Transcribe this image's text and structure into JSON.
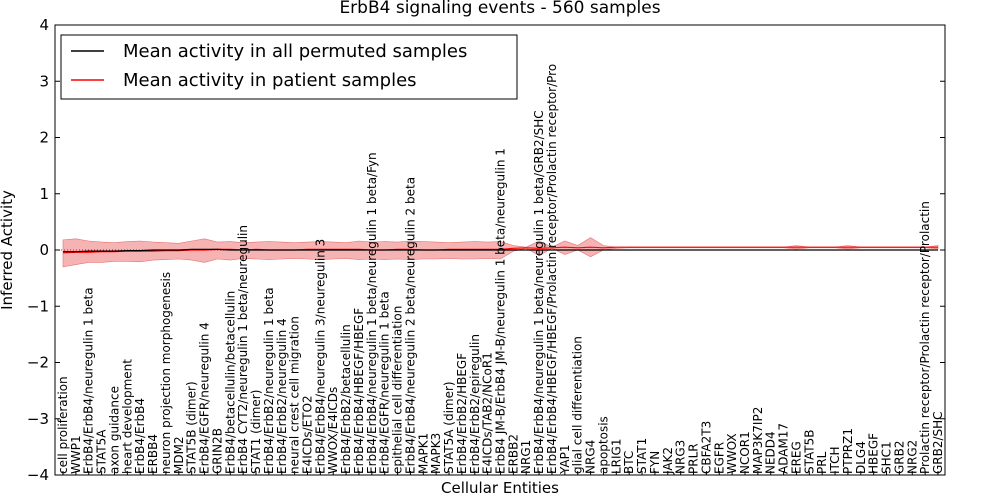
{
  "chart_data": {
    "type": "line",
    "title": "ErbB4 signaling events - 560 samples",
    "xlabel": "Cellular Entities",
    "ylabel": "Inferred Activity",
    "ylim": [
      -4,
      4
    ],
    "yticks": [
      "4",
      "3",
      "2",
      "1",
      "0",
      "−1",
      "−2",
      "−3",
      "−4"
    ],
    "legend": {
      "position": "top-left",
      "entries": [
        {
          "name": "Mean activity in all permuted samples",
          "color": "#000000"
        },
        {
          "name": "Mean activity in patient samples",
          "color": "#ff0000"
        }
      ]
    },
    "categories": [
      "cell proliferation",
      "WWP1",
      "ErbB4/ErbB4/neuregulin 1 beta",
      "STAT5A",
      "axon guidance",
      "heart development",
      "ErbB4/ErbB4",
      "ERBB4",
      "neuron projection morphogenesis",
      "MDM2",
      "STAT5B (dimer)",
      "ErbB4/EGFR/neuregulin 4",
      "GRIN2B",
      "ErbB4/betacellulin/betacellulin",
      "ErbB4 CYT2/neuregulin 1 beta/neuregulin",
      "STAT1 (dimer)",
      "ErbB4/ErbB2/neuregulin 1 beta",
      "ErbB4/ErbB2/neuregulin 4",
      "neural crest cell migration",
      "E4ICDs/ETO2",
      "ErbB4/ErbB4/neuregulin 3/neuregulin 3",
      "WWOX/E4ICDs",
      "ErbB4/ErbB2/betacellulin",
      "ErbB4/ErbB4/HBEGF/HBEGF",
      "ErbB4/ErbB4/neuregulin 1 beta/neuregulin 1 beta/Fyn",
      "ErbB4/EGFR/neuregulin 1 beta",
      "epithelial cell differentiation",
      "ErbB4/ErbB4/neuregulin 2 beta/neuregulin 2 beta",
      "MAPK1",
      "MAPK3",
      "STAT5A (dimer)",
      "ErbB4/ErbB2/HBEGF",
      "ErbB4/ErbB2/epiregulin",
      "E4ICDs/TAB2/NCoR1",
      "ErbB4 JM-B/ErbB4 JM-B/neuregulin 1 beta/neuregulin 1",
      "ERBB2",
      "NRG1",
      "ErbB4/ErbB4/neuregulin 1 beta/neuregulin 1 beta/GRB2/SHC",
      "ErbB4/ErbB4/HBEGF/HBEGF/Prolactin receptor/Prolactin receptor/Pro",
      "YAP1",
      "glial cell differentiation",
      "NRG4",
      "apoptosis",
      "LRIG1",
      "BTC",
      "STAT1",
      "FYN",
      "JAK2",
      "NRG3",
      "PRLR",
      "CBFA2T3",
      "EGFR",
      "WWOX",
      "NCOR1",
      "MAP3K7IP2",
      "NEDD4",
      "ADAM17",
      "EREG",
      "STAT5B",
      "PRL",
      "ITCH",
      "PTPRZ1",
      "DLG4",
      "HBEGF",
      "SHC1",
      "GRB2",
      "NRG2",
      "Prolactin receptor/Prolactin receptor/Prolactin",
      "GRB2/SHC"
    ],
    "series": [
      {
        "name": "Mean activity in patient samples",
        "values": [
          -0.05,
          -0.04,
          -0.04,
          -0.03,
          -0.03,
          -0.02,
          -0.02,
          -0.02,
          -0.01,
          -0.01,
          0.0,
          0.0,
          0.01,
          0.01,
          0.0,
          0.01,
          0.0,
          0.0,
          0.0,
          0.01,
          0.01,
          0.01,
          0.01,
          0.01,
          0.0,
          0.0,
          0.01,
          0.01,
          0.0,
          0.0,
          0.01,
          0.01,
          0.01,
          0.01,
          0.01,
          0.03,
          0.04,
          0.03,
          0.04,
          0.05,
          0.04,
          0.05,
          0.04,
          0.05,
          0.05,
          0.05,
          0.05,
          0.05,
          0.05,
          0.05,
          0.05,
          0.05,
          0.05,
          0.05,
          0.05,
          0.05,
          0.05,
          0.05,
          0.05,
          0.05,
          0.05,
          0.05,
          0.05,
          0.05,
          0.05,
          0.05,
          0.05,
          0.05,
          0.05
        ]
      },
      {
        "name": "Mean activity in all permuted samples",
        "values": [
          -0.03,
          -0.03,
          -0.02,
          -0.02,
          -0.02,
          -0.01,
          -0.01,
          0.0,
          0.0,
          0.0,
          0.01,
          0.01,
          0.01,
          0.0,
          0.0,
          0.0,
          0.0,
          0.0,
          0.0,
          0.0,
          0.0,
          0.0,
          0.0,
          0.0,
          0.0,
          0.0,
          0.0,
          0.0,
          0.0,
          0.0,
          0.0,
          0.0,
          0.0,
          0.0,
          0.0,
          0.0,
          0.0,
          0.0,
          0.0,
          0.0,
          0.0,
          0.0,
          0.0,
          0.0,
          0.0,
          0.0,
          0.0,
          0.0,
          0.0,
          0.0,
          0.0,
          0.0,
          0.0,
          0.0,
          0.0,
          0.0,
          0.0,
          0.0,
          0.0,
          0.0,
          0.0,
          0.0,
          0.0,
          0.0,
          0.0,
          0.0,
          0.0,
          0.0,
          0.0
        ]
      },
      {
        "name": "Activity band upper",
        "values": [
          0.18,
          0.2,
          0.16,
          0.14,
          0.13,
          0.15,
          0.16,
          0.14,
          0.13,
          0.12,
          0.16,
          0.2,
          0.14,
          0.15,
          0.13,
          0.14,
          0.15,
          0.14,
          0.13,
          0.14,
          0.15,
          0.14,
          0.13,
          0.16,
          0.14,
          0.15,
          0.14,
          0.16,
          0.15,
          0.14,
          0.13,
          0.14,
          0.15,
          0.14,
          0.15,
          0.08,
          0.05,
          0.16,
          0.05,
          0.16,
          0.08,
          0.22,
          0.08,
          0.05,
          0.05,
          0.05,
          0.05,
          0.05,
          0.05,
          0.05,
          0.05,
          0.05,
          0.05,
          0.05,
          0.05,
          0.05,
          0.05,
          0.08,
          0.05,
          0.05,
          0.05,
          0.08,
          0.05,
          0.05,
          0.05,
          0.05,
          0.05,
          0.05,
          0.08
        ]
      },
      {
        "name": "Activity band lower",
        "values": [
          -0.3,
          -0.26,
          -0.22,
          -0.22,
          -0.2,
          -0.2,
          -0.21,
          -0.18,
          -0.17,
          -0.16,
          -0.18,
          -0.22,
          -0.16,
          -0.18,
          -0.15,
          -0.16,
          -0.17,
          -0.16,
          -0.15,
          -0.16,
          -0.17,
          -0.16,
          -0.15,
          -0.17,
          -0.16,
          -0.17,
          -0.16,
          -0.17,
          -0.16,
          -0.16,
          -0.15,
          -0.16,
          -0.16,
          -0.15,
          -0.16,
          -0.02,
          0.03,
          -0.1,
          0.03,
          -0.08,
          0.0,
          -0.12,
          0.0,
          0.03,
          0.04,
          0.04,
          0.04,
          0.04,
          0.04,
          0.04,
          0.04,
          0.04,
          0.04,
          0.04,
          0.04,
          0.04,
          0.04,
          0.02,
          0.04,
          0.04,
          0.04,
          0.02,
          0.04,
          0.04,
          0.04,
          0.04,
          0.04,
          0.04,
          0.02
        ]
      }
    ],
    "colors": {
      "band": "#f4a6a6",
      "patient": "#ff0000",
      "permuted": "#000000",
      "zero_line": "#ff0000"
    }
  }
}
